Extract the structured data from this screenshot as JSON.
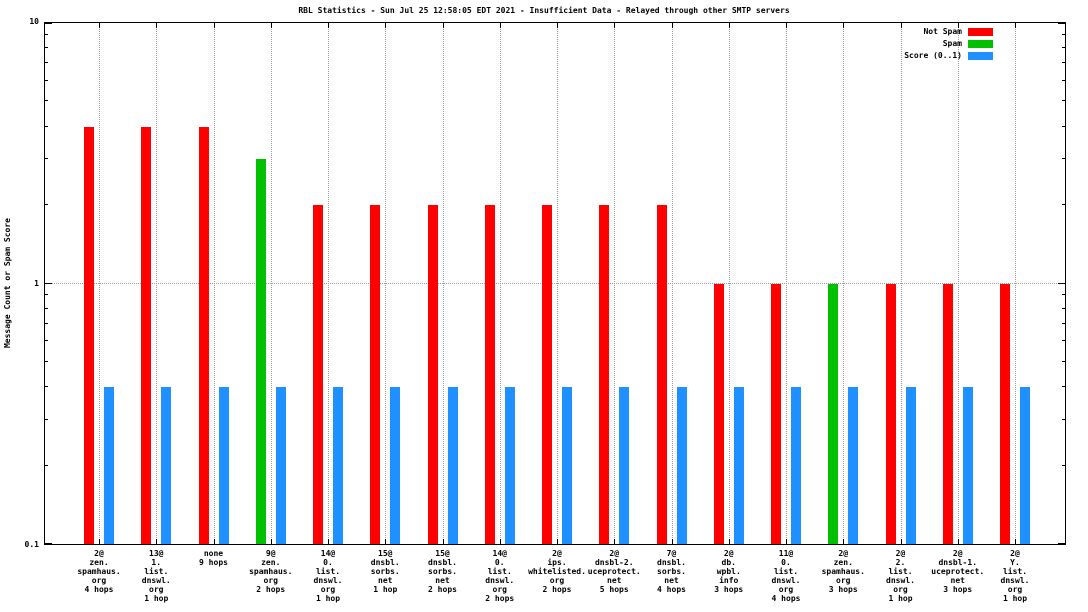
{
  "title": "RBL Statistics - Sun Jul 25 12:58:05 EDT 2021 - Insufficient Data - Relayed through other SMTP servers",
  "ylabel": "Message Count or Spam Score",
  "y_ticks": [
    "10",
    "1",
    "0.1"
  ],
  "legend": [
    {
      "label": "Not Spam",
      "color": "#ff0000"
    },
    {
      "label": "Spam",
      "color": "#00c000"
    },
    {
      "label": "Score (0..1)",
      "color": "#1e90ff"
    }
  ],
  "chart_data": {
    "type": "bar",
    "scale": "log",
    "title": "RBL Statistics - Sun Jul 25 12:58:05 EDT 2021 - Insufficient Data - Relayed through other SMTP servers",
    "xlabel": "",
    "ylabel": "Message Count or Spam Score",
    "ylim": [
      0.1,
      10
    ],
    "grid": true,
    "legend_position": "top-right",
    "categories": [
      [
        "2@",
        "zen.",
        "spamhaus.",
        "org",
        "4 hops"
      ],
      [
        "13@",
        "1.",
        "list.",
        "dnswl.",
        "org",
        "1 hop"
      ],
      [
        "none",
        "9 hops"
      ],
      [
        "9@",
        "zen.",
        "spamhaus.",
        "org",
        "2 hops"
      ],
      [
        "14@",
        "0.",
        "list.",
        "dnswl.",
        "org",
        "1 hop"
      ],
      [
        "15@",
        "dnsbl.",
        "sorbs.",
        "net",
        "1 hop"
      ],
      [
        "15@",
        "dnsbl.",
        "sorbs.",
        "net",
        "2 hops"
      ],
      [
        "14@",
        "0.",
        "list.",
        "dnswl.",
        "org",
        "2 hops"
      ],
      [
        "2@",
        "ips.",
        "whitelisted.",
        "org",
        "2 hops"
      ],
      [
        "2@",
        "dnsbl-2.",
        "uceprotect.",
        "net",
        "5 hops"
      ],
      [
        "7@",
        "dnsbl.",
        "sorbs.",
        "net",
        "4 hops"
      ],
      [
        "2@",
        "db.",
        "wpbl.",
        "info",
        "3 hops"
      ],
      [
        "11@",
        "0.",
        "list.",
        "dnswl.",
        "org",
        "4 hops"
      ],
      [
        "2@",
        "zen.",
        "spamhaus.",
        "org",
        "3 hops"
      ],
      [
        "2@",
        "2.",
        "list.",
        "dnswl.",
        "org",
        "1 hop"
      ],
      [
        "2@",
        "dnsbl-1.",
        "uceprotect.",
        "net",
        "3 hops"
      ],
      [
        "2@",
        "Y.",
        "list.",
        "dnswl.",
        "org",
        "1 hop"
      ]
    ],
    "series": [
      {
        "name": "Not Spam",
        "color": "#ff0000",
        "values": [
          4,
          4,
          4,
          0,
          2,
          2,
          2,
          2,
          2,
          2,
          2,
          1,
          1,
          0,
          1,
          1,
          1
        ]
      },
      {
        "name": "Spam",
        "color": "#00c000",
        "values": [
          0,
          0,
          0,
          3,
          0,
          0,
          0,
          0,
          0,
          0,
          0,
          0,
          0,
          1,
          0,
          0,
          0
        ]
      },
      {
        "name": "Score (0..1)",
        "color": "#1e90ff",
        "values": [
          0.4,
          0.4,
          0.4,
          0.4,
          0.4,
          0.4,
          0.4,
          0.4,
          0.4,
          0.4,
          0.4,
          0.4,
          0.4,
          0.4,
          0.4,
          0.4,
          0.4
        ]
      }
    ]
  }
}
